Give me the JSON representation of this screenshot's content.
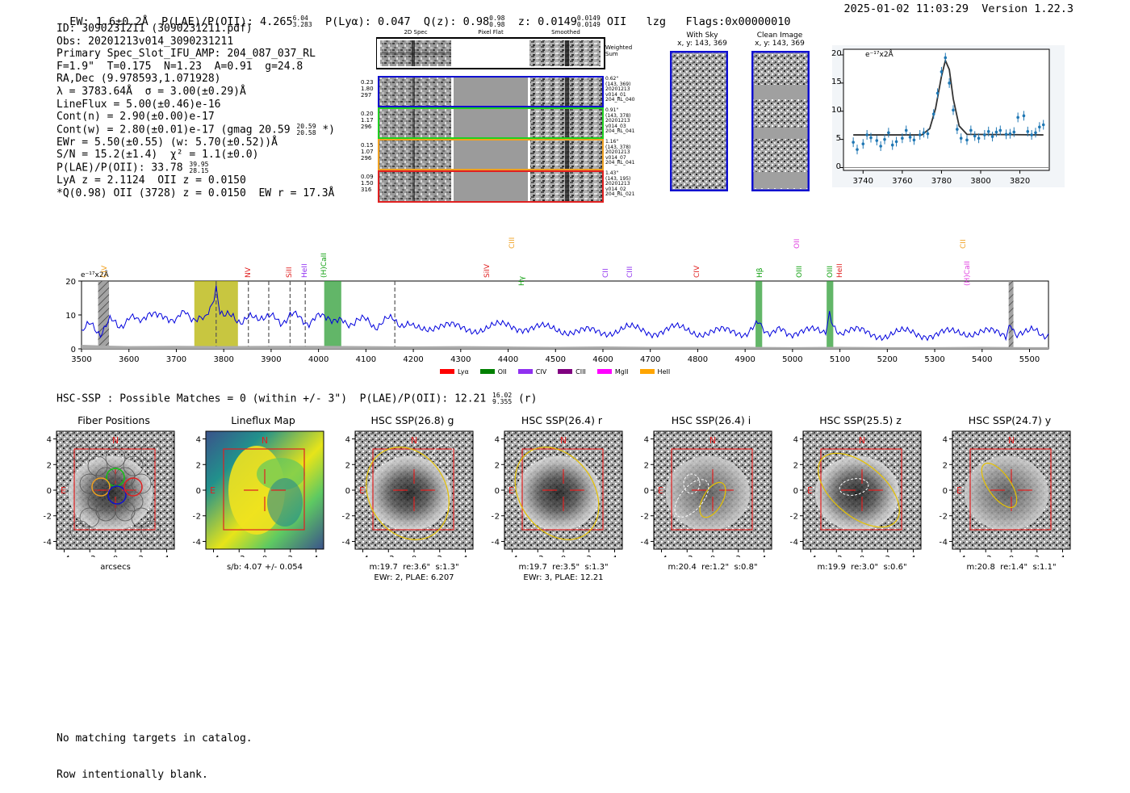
{
  "header": {
    "left": "EW: 1.6±0.2Å  P(LAE)/P(OII): 4.265",
    "plae_sup": "6.04",
    "plae_sub": "3.283",
    "mid": "P(Lyα): 0.047  Q(z): 0.98",
    "qz_sup": "0.98",
    "qz_sub": "0.98",
    "z": "z: 0.0149",
    "z_sup": "0.0149",
    "z_sub": "0.0149",
    "tail": "OII   lzg   Flags:0x00000010",
    "datetime": "2025-01-02 11:03:29  Version 1.22.3"
  },
  "info": {
    "l1": "ID: 3090231211 (3090231211.pdf)",
    "l2": "Obs: 20201213v014_3090231211",
    "l3": "Primary Spec_Slot_IFU_AMP: 204_087_037_RL",
    "l4": "F=1.9\"  T=0.175  N=1.23  A=0.91  g=24.8",
    "l5": "RA,Dec (9.978593,1.071928)",
    "l6": "λ = 3783.64Å  σ = 3.00(±0.29)Å",
    "l7": "LineFlux = 5.00(±0.46)e-16",
    "l8": "Cont(n) = 2.90(±0.00)e-17",
    "l9": "Cont(w) = 2.80(±0.01)e-17 (gmag 20.59",
    "l9_sup": "20.59",
    "l9_sub": "20.58",
    "l9_end": "*)",
    "l10": "EWr = 5.50(±0.55) (w: 5.70(±0.52))Å",
    "l11": "S/N = 15.2(±1.4)  χ² = 1.1(±0.0)",
    "l12": "P(LAE)/P(OII): 33.78",
    "l12_sup": "39.95",
    "l12_sub": "28.15",
    "l13": "LyA z = 2.1124  OII z = 0.0150",
    "l14": "*Q(0.98) OII (3728) z = 0.0150  EW r = 17.3Å"
  },
  "spec2d": {
    "col_2d": "2D Spec",
    "col_flat": "Pixel Flat",
    "col_smooth": "Smoothed",
    "weighted_label": "Weighted\nSum",
    "rows": [
      {
        "left": "0.23\n1.80\n297",
        "right": "0.62\"\n(143, 369)\n20201213\nv014_01\n204_RL_040",
        "color": "#1010d0"
      },
      {
        "left": "0.20\n1.17\n296",
        "right": "0.91\"\n(143, 378)\n20201213\nv014_03\n204_RL_041",
        "color": "#20d020"
      },
      {
        "left": "0.15\n1.07\n296",
        "right": "1.16\"\n(143, 378)\n20201213\nv014_07\n204_RL_041",
        "color": "#f0a020"
      },
      {
        "left": "0.09\n1.50\n316",
        "right": "1.43\"\n(143, 195)\n20201213\nv014_02\n204_RL_021",
        "color": "#e02020"
      }
    ]
  },
  "cutouts": {
    "with_sky": "With Sky",
    "with_sky_xy": "x, y: 143, 369",
    "clean": "Clean Image",
    "clean_xy": "x, y: 143, 369"
  },
  "zoom_plot": {
    "ylabel": "e⁻¹⁷x2Å",
    "xticks": [
      "3740",
      "3760",
      "3780",
      "3800",
      "3820"
    ],
    "yticks": [
      "0",
      "5",
      "10",
      "15",
      "20"
    ]
  },
  "spectrum": {
    "ylabel": "e⁻¹⁷x2Å",
    "xticks": [
      "3500",
      "3600",
      "3700",
      "3800",
      "3900",
      "4000",
      "4100",
      "4200",
      "4300",
      "4400",
      "4500",
      "4600",
      "4700",
      "4800",
      "4900",
      "5000",
      "5100",
      "5200",
      "5300",
      "5400",
      "5500"
    ],
    "yticks": [
      "0",
      "10",
      "20"
    ],
    "line_labels": [
      {
        "text": "CIV",
        "color": "#f0a020"
      },
      {
        "text": "NV",
        "color": "#e02020"
      },
      {
        "text": "SiII",
        "color": "#e02020"
      },
      {
        "text": "HeII",
        "color": "#9030f0"
      },
      {
        "text": "(H)CaII",
        "color": "#10a010"
      },
      {
        "text": "SiIV",
        "color": "#e02020"
      },
      {
        "text": "CIII",
        "color": "#f0a020"
      },
      {
        "text": "Hγ",
        "color": "#10a010"
      },
      {
        "text": "CII",
        "color": "#9030f0"
      },
      {
        "text": "CIII",
        "color": "#9030f0"
      },
      {
        "text": "CIV",
        "color": "#e02020"
      },
      {
        "text": "Hβ",
        "color": "#10a010"
      },
      {
        "text": "OII",
        "color": "#e040e0"
      },
      {
        "text": "OIII",
        "color": "#10a010"
      },
      {
        "text": "OIII",
        "color": "#10a010"
      },
      {
        "text": "HeII",
        "color": "#e02020"
      },
      {
        "text": "CII",
        "color": "#f0a020"
      },
      {
        "text": "(H)CaII",
        "color": "#e040e0"
      }
    ],
    "legend": [
      {
        "label": "Lyα",
        "color": "#ff0000"
      },
      {
        "label": "OII",
        "color": "#008000"
      },
      {
        "label": "CIV",
        "color": "#9030f0"
      },
      {
        "label": "CIII",
        "color": "#800080"
      },
      {
        "label": "MgII",
        "color": "#ff00ff"
      },
      {
        "label": "HeII",
        "color": "#ffa500"
      }
    ]
  },
  "hsc": {
    "line": "HSC-SSP : Possible Matches = 0 (within +/- 3\")  P(LAE)/P(OII): 12.21",
    "sup": "16.02",
    "sub": "9.355",
    "tail": "(r)",
    "panels": [
      {
        "title": "Fiber Positions",
        "under1": "arcsecs",
        "under2": ""
      },
      {
        "title": "Lineflux Map",
        "under1": "s/b: 4.07 +/- 0.054",
        "under2": ""
      },
      {
        "title": "HSC SSP(26.8) g",
        "under1": "m:19.7  re:3.6\"  s:1.3\"",
        "under2": "EWr: 2, PLAE: 6.207"
      },
      {
        "title": "HSC SSP(26.4) r",
        "under1": "m:19.7  re:3.5\"  s:1.3\"",
        "under2": "EWr: 3, PLAE: 12.21"
      },
      {
        "title": "HSC SSP(26.4) i",
        "under1": "m:20.4  re:1.2\"  s:0.8\"",
        "under2": ""
      },
      {
        "title": "HSC SSP(25.5) z",
        "under1": "m:19.9  re:3.0\"  s:0.6\"",
        "under2": ""
      },
      {
        "title": "HSC SSP(24.7) y",
        "under1": "m:20.8  re:1.4\"  s:1.1\"",
        "under2": ""
      }
    ],
    "compass_n": "N",
    "compass_e": "E",
    "ticks": [
      "−4",
      "−2",
      "0",
      "2",
      "4"
    ]
  },
  "catalog": {
    "l1": "No matching targets in catalog.",
    "l2": "Row intentionally blank."
  },
  "chart_data": [
    {
      "type": "line",
      "title": "",
      "xlabel": "",
      "ylabel": "e⁻¹⁷x2Å",
      "xlim": [
        3730,
        3835
      ],
      "ylim": [
        -0.5,
        21
      ],
      "grid": false,
      "series": [
        {
          "name": "data",
          "x": [
            3735,
            3737,
            3740,
            3742,
            3744,
            3747,
            3749,
            3751,
            3753,
            3755,
            3757,
            3760,
            3762,
            3764,
            3766,
            3769,
            3771,
            3773,
            3776,
            3778,
            3780,
            3782,
            3784,
            3786,
            3788,
            3790,
            3793,
            3795,
            3797,
            3799,
            3802,
            3804,
            3806,
            3808,
            3810,
            3813,
            3815,
            3817,
            3819,
            3822,
            3824,
            3826,
            3828,
            3830,
            3832
          ],
          "y": [
            4.5,
            3.2,
            4.2,
            5.8,
            5.3,
            4.8,
            3.8,
            5.0,
            6.2,
            4.0,
            4.6,
            5.2,
            6.6,
            5.4,
            4.9,
            5.8,
            6.2,
            6.0,
            9.5,
            13.2,
            17.0,
            19.5,
            15.0,
            10.2,
            6.8,
            5.2,
            4.9,
            6.6,
            5.6,
            5.2,
            5.8,
            6.4,
            5.5,
            6.3,
            6.6,
            5.9,
            6.0,
            6.3,
            8.9,
            9.2,
            6.4,
            5.8,
            6.2,
            7.2,
            7.6
          ]
        },
        {
          "name": "fit",
          "x": [
            3735,
            3770,
            3774,
            3777,
            3780,
            3782,
            3784,
            3786,
            3789,
            3793,
            3832
          ],
          "y": [
            5.8,
            5.8,
            6.9,
            10.5,
            16.2,
            19.0,
            17.4,
            12.2,
            7.4,
            5.9,
            5.8
          ]
        }
      ],
      "xticks": [
        3740,
        3760,
        3780,
        3800,
        3820
      ],
      "yticks": [
        0,
        5,
        10,
        15,
        20
      ]
    },
    {
      "type": "line",
      "title": "",
      "xlabel": "",
      "ylabel": "e⁻¹⁷x2Å",
      "xlim": [
        3500,
        5540
      ],
      "ylim": [
        0,
        20
      ],
      "grid": false,
      "series": [
        {
          "name": "spectrum",
          "x": [
            3500,
            3520,
            3540,
            3560,
            3580,
            3600,
            3620,
            3640,
            3660,
            3680,
            3700,
            3720,
            3740,
            3760,
            3775,
            3784,
            3792,
            3800,
            3820,
            3840,
            3860,
            3880,
            3900,
            3920,
            3940,
            3960,
            3980,
            4000,
            4020,
            4040,
            4060,
            4080,
            4100,
            4120,
            4140,
            4160,
            4180,
            4200,
            4250,
            4300,
            4350,
            4400,
            4450,
            4500,
            4550,
            4600,
            4650,
            4700,
            4750,
            4800,
            4850,
            4900,
            4920,
            4930,
            4940,
            4960,
            5000,
            5050,
            5070,
            5078,
            5086,
            5100,
            5150,
            5200,
            5250,
            5300,
            5350,
            5400,
            5450,
            5460,
            5470,
            5500,
            5540
          ],
          "y": [
            5,
            7,
            5,
            8,
            7,
            9,
            8,
            11,
            9,
            10,
            8,
            11,
            9,
            8,
            12,
            19,
            11,
            9,
            10,
            8,
            9,
            10,
            9,
            8,
            10,
            9,
            8,
            9,
            10,
            8,
            7,
            9,
            8,
            7,
            8,
            9,
            7,
            6,
            7,
            6,
            6,
            7,
            6,
            6,
            5,
            5,
            6,
            5,
            6,
            5,
            5,
            5,
            6,
            9,
            6,
            5,
            5,
            5,
            6,
            11,
            6,
            5,
            5,
            4,
            5,
            4,
            5,
            5,
            4,
            6,
            4,
            5,
            4.5
          ]
        },
        {
          "name": "sky",
          "x": [
            3500,
            3540,
            3600,
            3700,
            3800,
            3900,
            4000,
            4100,
            4200,
            4300,
            4400,
            4500,
            4600,
            4700,
            4800,
            4900,
            5000,
            5100,
            5200,
            5300,
            5400,
            5500,
            5540
          ],
          "y": [
            1.2,
            1.0,
            0.8,
            0.9,
            0.8,
            0.9,
            0.9,
            0.8,
            0.7,
            0.8,
            0.7,
            0.6,
            0.7,
            0.6,
            0.6,
            0.6,
            0.5,
            0.6,
            0.5,
            0.5,
            0.6,
            0.5,
            0.5
          ]
        }
      ],
      "shaded_regions": [
        {
          "x0": 3738,
          "x1": 3830,
          "color": "#b5b300"
        },
        {
          "x0": 4012,
          "x1": 4048,
          "color": "#2e9e36"
        },
        {
          "x0": 4922,
          "x1": 4936,
          "color": "#2e9e36"
        },
        {
          "x0": 5072,
          "x1": 5086,
          "color": "#2e9e36"
        },
        {
          "x0": 3535,
          "x1": 3558,
          "color": "#777777"
        },
        {
          "x0": 5456,
          "x1": 5466,
          "color": "#777777"
        }
      ],
      "dashed_lines": [
        3784,
        3852,
        3895,
        3940,
        3972,
        4161
      ],
      "xticks": [
        3500,
        3600,
        3700,
        3800,
        3900,
        4000,
        4100,
        4200,
        4300,
        4400,
        4500,
        4600,
        4700,
        4800,
        4900,
        5000,
        5100,
        5200,
        5300,
        5400,
        5500
      ],
      "yticks": [
        0,
        10,
        20
      ]
    }
  ]
}
